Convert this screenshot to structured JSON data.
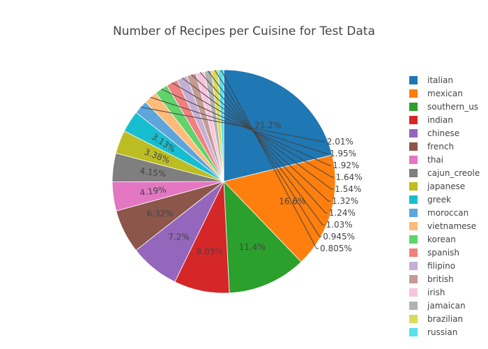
{
  "chart_data": {
    "type": "pie",
    "title": "Number of Recipes per Cuisine for Test Data",
    "legend_position": "right",
    "slices": [
      {
        "label": "italian",
        "value": 21.2,
        "text": "21.2%",
        "color": "#1f77b4"
      },
      {
        "label": "mexican",
        "value": 16.6,
        "text": "16.6%",
        "color": "#ff7f0e"
      },
      {
        "label": "southern_us",
        "value": 11.4,
        "text": "11.4%",
        "color": "#2ca02c"
      },
      {
        "label": "indian",
        "value": 8.03,
        "text": "8.03%",
        "color": "#d62728"
      },
      {
        "label": "chinese",
        "value": 7.2,
        "text": "7.2%",
        "color": "#9467bd"
      },
      {
        "label": "french",
        "value": 6.32,
        "text": "6.32%",
        "color": "#8c564b"
      },
      {
        "label": "thai",
        "value": 4.19,
        "text": "4.19%",
        "color": "#e377c2"
      },
      {
        "label": "cajun_creole",
        "value": 4.15,
        "text": "4.15%",
        "color": "#7f7f7f"
      },
      {
        "label": "japanese",
        "value": 3.38,
        "text": "3.38%",
        "color": "#bcbd22"
      },
      {
        "label": "greek",
        "value": 3.13,
        "text": "3.13%",
        "color": "#17becf"
      },
      {
        "label": "moroccan",
        "value": 2.01,
        "text": "2.01%",
        "color": "#5da5da"
      },
      {
        "label": "vietnamese",
        "value": 1.95,
        "text": "1.95%",
        "color": "#ffbb78"
      },
      {
        "label": "korean",
        "value": 1.92,
        "text": "1.92%",
        "color": "#62d36a"
      },
      {
        "label": "spanish",
        "value": 1.64,
        "text": "1.64%",
        "color": "#f08080"
      },
      {
        "label": "filipino",
        "value": 1.54,
        "text": "1.54%",
        "color": "#c5b0d5"
      },
      {
        "label": "british",
        "value": 1.32,
        "text": "1.32%",
        "color": "#c49c94"
      },
      {
        "label": "irish",
        "value": 1.24,
        "text": "1.24%",
        "color": "#f7c6dd"
      },
      {
        "label": "jamaican",
        "value": 1.03,
        "text": "1.03%",
        "color": "#b3b3b3"
      },
      {
        "label": "brazilian",
        "value": 0.945,
        "text": "0.945%",
        "color": "#dbdb5a"
      },
      {
        "label": "russian",
        "value": 0.805,
        "text": "0.805%",
        "color": "#5be0ec"
      }
    ]
  }
}
